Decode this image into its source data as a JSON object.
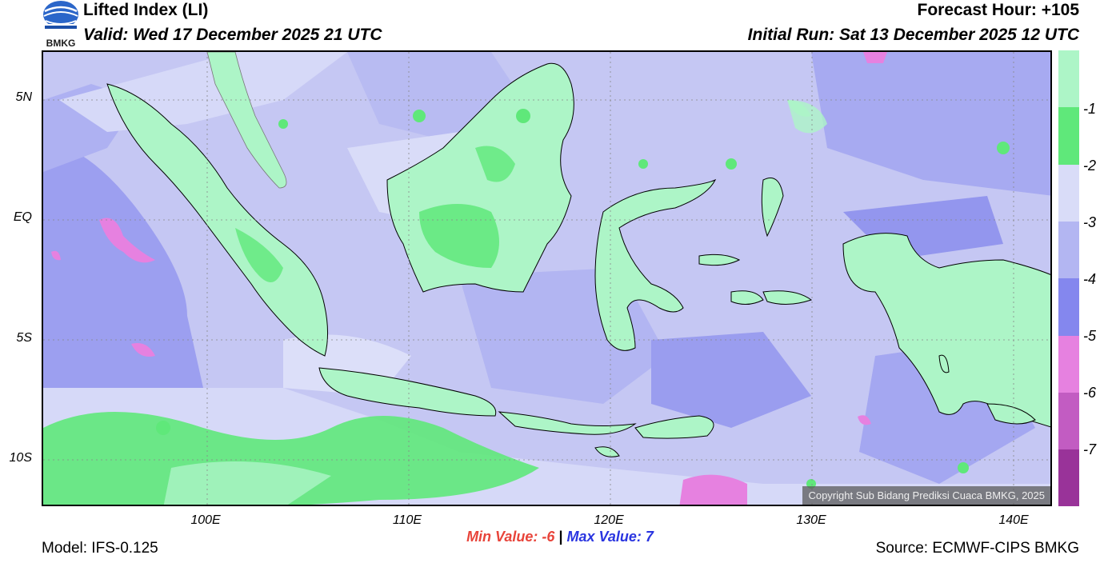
{
  "header": {
    "title": "Lifted Index (LI)",
    "valid": "Valid: Wed 17 December 2025 21 UTC",
    "forecast_hour": "Forecast Hour: +105",
    "initial_run": "Initial Run: Sat 13 December 2025 12 UTC"
  },
  "logo": {
    "text": "BMKG"
  },
  "axes": {
    "lat_labels": [
      "5N",
      "EQ",
      "5S",
      "10S"
    ],
    "lon_labels": [
      "100E",
      "110E",
      "120E",
      "130E",
      "140E"
    ]
  },
  "colorbar": {
    "labels": [
      "-1",
      "-2",
      "-3",
      "-4",
      "-5",
      "-6",
      "-7"
    ],
    "colors": [
      "#adf5c7",
      "#5fe87a",
      "#d9dcf8",
      "#b3b6f2",
      "#8487ee",
      "#e681e0",
      "#c25cc2",
      "#993399"
    ]
  },
  "stats": {
    "min_label": "Min Value:",
    "min_value": "-6",
    "separator": "|",
    "max_label": "Max Value:",
    "max_value": "7"
  },
  "footer": {
    "model": "Model: IFS-0.125",
    "source": "Source: ECMWF-CIPS BMKG",
    "copyright": "Copyright Sub Bidang Prediksi Cuaca BMKG, 2025"
  }
}
